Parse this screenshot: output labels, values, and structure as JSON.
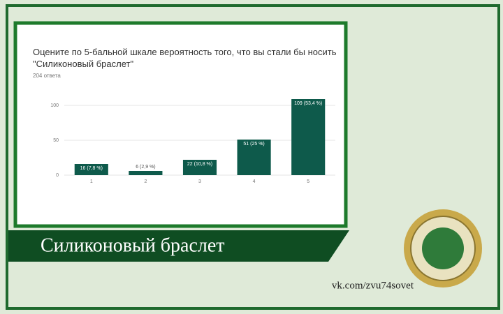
{
  "chart_data": {
    "type": "bar",
    "title": "Оцените по 5-бальной шкале вероятность того, что вы стали бы носить \"Силиконовый браслет\"",
    "subtitle": "204 ответа",
    "categories": [
      "1",
      "2",
      "3",
      "4",
      "5"
    ],
    "values": [
      16,
      6,
      22,
      51,
      109
    ],
    "value_labels": [
      "16 (7,8 %)",
      "6 (2,9 %)",
      "22 (10,8 %)",
      "51 (25 %)",
      "109 (53,4 %)"
    ],
    "color": "#0e5a4b",
    "ylim": [
      0,
      110
    ],
    "yticks": [
      0,
      50,
      100
    ],
    "grid": true
  },
  "banner": "Силиконовый браслет",
  "footer": "vk.com/zvu74sovet"
}
